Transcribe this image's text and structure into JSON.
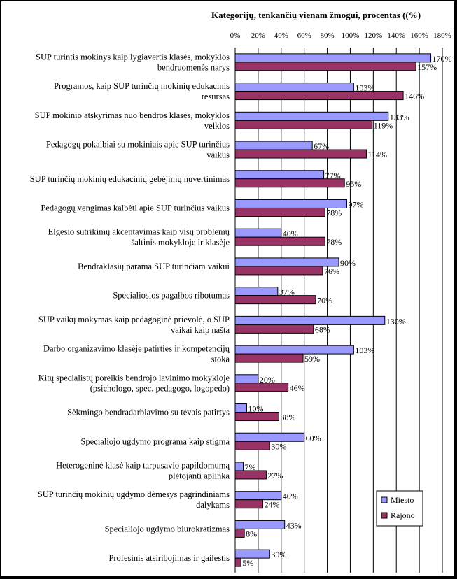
{
  "chart_data": {
    "type": "bar",
    "orientation": "horizontal",
    "title": "Kategorijų, tenkančių vienam žmogui, procentas ((%)",
    "xlim": [
      0,
      180
    ],
    "xticks": [
      "0%",
      "20%",
      "40%",
      "60%",
      "80%",
      "100%",
      "120%",
      "140%",
      "160%",
      "180%"
    ],
    "grid": true,
    "legend_position": "bottom-right",
    "categories": [
      [
        "SUP turintis mokinys kaip lygiavertis klasės, mokyklos",
        "bendruomenės narys"
      ],
      [
        "Programos, kaip SUP turinčių mokinių edukacinis",
        "resursas"
      ],
      [
        "SUP mokinio atskyrimas nuo bendros klasės, mokyklos",
        "veiklos"
      ],
      [
        "Pedagogų pokalbiai su mokiniais apie SUP turinčius",
        "vaikus"
      ],
      [
        "SUP turinčių mokinių edukacinių gebėjimų nuvertinimas"
      ],
      [
        "Pedagogų vengimas kalbėti apie SUP turinčius vaikus"
      ],
      [
        "Elgesio sutrikimų akcentavimas kaip visų problemų",
        "šaltinis mokykloje ir klasėje"
      ],
      [
        "Bendraklasių parama SUP turinčiam vaikui"
      ],
      [
        "Specialiosios pagalbos ribotumas"
      ],
      [
        "SUP vaikų mokymas kaip pedagoginė prievolė, o SUP",
        "vaikai kaip našta"
      ],
      [
        "Darbo organizavimo klasėje patirties ir kompetencijų",
        "stoka"
      ],
      [
        "Kitų specialistų poreikis bendrojo lavinimo mokykloje",
        "(psichologo, spec. pedagogo, logopedo)"
      ],
      [
        "Sėkmingo bendradarbiavimo su tėvais patirtys"
      ],
      [
        "Specialiojo ugdymo programa kaip stigma"
      ],
      [
        "Heterogeninė klasė kaip tarpusavio papildomumą",
        "plėtojanti aplinka"
      ],
      [
        "SUP turinčių mokinių ugdymo dėmesys pagrindiniams",
        "dalykams"
      ],
      [
        "Specialiojo ugdymo biurokratizmas"
      ],
      [
        "Profesinis atsiribojimas ir gailestis"
      ]
    ],
    "series": [
      {
        "name": "Miesto",
        "color": "#9999ff",
        "values": [
          170,
          103,
          133,
          67,
          77,
          97,
          40,
          90,
          37,
          130,
          103,
          20,
          10,
          60,
          7,
          40,
          43,
          30
        ],
        "labels": [
          "170%",
          "103%",
          "133%",
          "67%",
          "77%",
          "97%",
          "40%",
          "90%",
          "37%",
          "130%",
          "103%",
          "20%",
          "10%",
          "60%",
          "7%",
          "40%",
          "43%",
          "30%"
        ]
      },
      {
        "name": "Rajono",
        "color": "#993366",
        "values": [
          157,
          146,
          119,
          114,
          95,
          78,
          78,
          76,
          70,
          68,
          59,
          46,
          38,
          30,
          27,
          24,
          8,
          5
        ],
        "labels": [
          "157%",
          "146%",
          "119%",
          "114%",
          "95%",
          "78%",
          "78%",
          "76%",
          "70%",
          "68%",
          "59%",
          "46%",
          "38%",
          "30%",
          "27%",
          "24%",
          "8%",
          "5%"
        ]
      }
    ]
  }
}
